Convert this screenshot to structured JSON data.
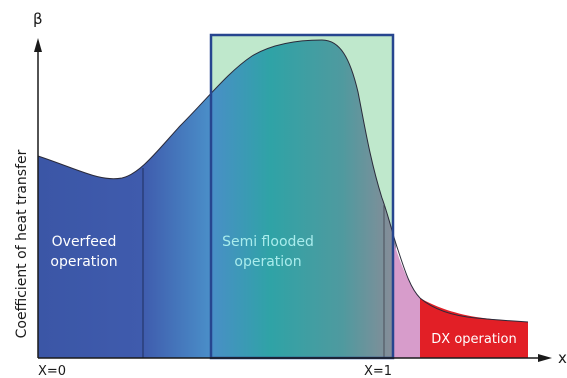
{
  "axes": {
    "y_symbol": "β",
    "x_symbol": "x",
    "y_label": "Coefficient of heat transfer",
    "x_tick_left": "X=0",
    "x_tick_right": "X=1"
  },
  "regions": [
    {
      "id": "overfeed",
      "lines": [
        "Overfeed",
        "operation"
      ],
      "color": "#3b56a6"
    },
    {
      "id": "semi_flooded",
      "lines": [
        "Semi flooded",
        "operation"
      ],
      "color": "#2fa3a6"
    },
    {
      "id": "dx",
      "lines": [
        "DX operation"
      ],
      "color": "#e21f26"
    }
  ],
  "colors": {
    "axis": "#1a1a1a",
    "overfeed_fill": "#3b56a6",
    "gradient_mid": "#2fa3a6",
    "gradient_end": "#7a8a92",
    "semi_box_fill": "#bfe8cc",
    "semi_box_border": "#26458f",
    "transition_fill": "#d79ccb",
    "dx_fill": "#e21f26",
    "region_text": "#ffffff",
    "semi_text": "#a9ecec"
  }
}
